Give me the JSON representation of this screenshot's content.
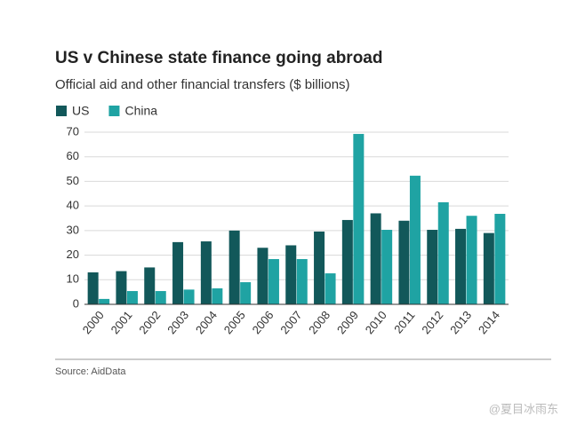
{
  "chart_data": {
    "type": "bar",
    "title": "US v Chinese state finance going abroad",
    "subtitle": "Official aid and other financial transfers ($ billions)",
    "categories": [
      "2000",
      "2001",
      "2002",
      "2003",
      "2004",
      "2005",
      "2006",
      "2007",
      "2008",
      "2009",
      "2010",
      "2011",
      "2012",
      "2013",
      "2014"
    ],
    "series": [
      {
        "name": "US",
        "color": "#12585a",
        "values": [
          13,
          13.5,
          15,
          25.3,
          25.6,
          30,
          23,
          24,
          29.6,
          34.3,
          37,
          34,
          30.3,
          30.7,
          29
        ]
      },
      {
        "name": "China",
        "color": "#1fa3a3",
        "values": [
          2.2,
          5.4,
          5.4,
          6,
          6.5,
          9,
          18.4,
          18.4,
          12.6,
          69.3,
          30.3,
          52.3,
          41.5,
          36,
          36.8
        ]
      }
    ],
    "ylim": [
      0,
      70
    ],
    "yticks": [
      0,
      10,
      20,
      30,
      40,
      50,
      60,
      70
    ],
    "grid": true,
    "source": "Source: AidData",
    "watermark": "@夏目冰雨东"
  }
}
